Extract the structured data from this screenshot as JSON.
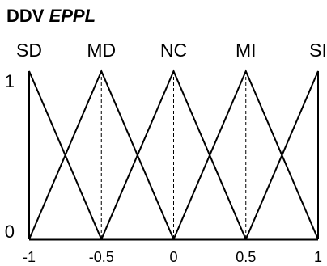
{
  "chart_data": {
    "type": "line",
    "title_prefix": "DDV",
    "title_italic": "EPPL",
    "x_ticks": [
      "-1",
      "-0.5",
      "0",
      "0.5",
      "1"
    ],
    "y_ticks": [
      "0",
      "1"
    ],
    "xlim": [
      -1,
      1
    ],
    "ylim": [
      0,
      1
    ],
    "grid": false,
    "series": [
      {
        "name": "SD",
        "x": [
          -1,
          -1,
          -0.5
        ],
        "y": [
          0,
          1,
          0
        ]
      },
      {
        "name": "MD",
        "x": [
          -1,
          -0.5,
          0
        ],
        "y": [
          0,
          1,
          0
        ]
      },
      {
        "name": "NC",
        "x": [
          -0.5,
          0,
          0.5
        ],
        "y": [
          0,
          1,
          0
        ]
      },
      {
        "name": "MI",
        "x": [
          0,
          0.5,
          1
        ],
        "y": [
          0,
          1,
          0
        ]
      },
      {
        "name": "SI",
        "x": [
          0.5,
          1,
          1
        ],
        "y": [
          0,
          1,
          0
        ]
      }
    ],
    "peak_markers": [
      -0.5,
      0,
      0.5
    ]
  }
}
